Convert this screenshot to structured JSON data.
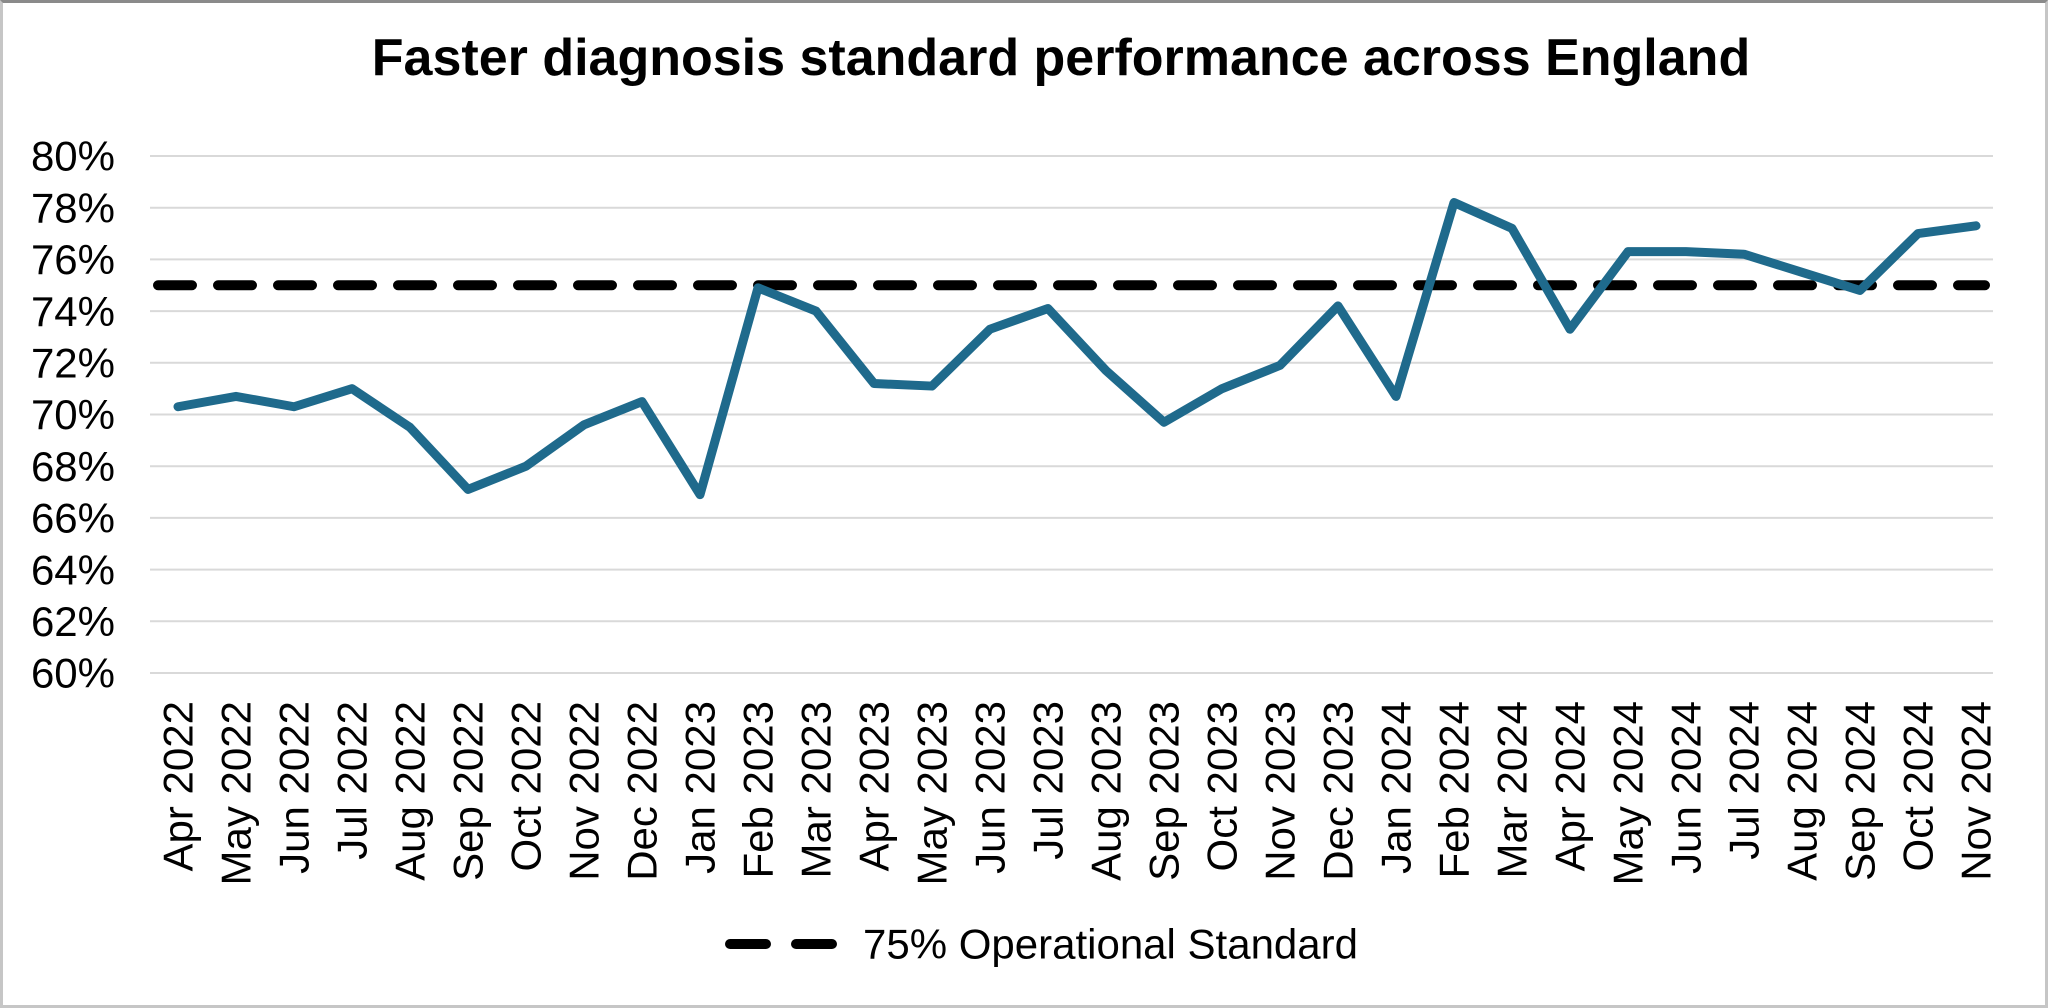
{
  "title": "Faster diagnosis standard performance across England",
  "chart_data": {
    "type": "line",
    "title": "Faster diagnosis standard performance across England",
    "categories": [
      "Apr 2022",
      "May 2022",
      "Jun 2022",
      "Jul 2022",
      "Aug 2022",
      "Sep 2022",
      "Oct 2022",
      "Nov 2022",
      "Dec 2022",
      "Jan 2023",
      "Feb 2023",
      "Mar 2023",
      "Apr 2023",
      "May 2023",
      "Jun 2023",
      "Jul 2023",
      "Aug 2023",
      "Sep 2023",
      "Oct 2023",
      "Nov 2023",
      "Dec 2023",
      "Jan 2024",
      "Feb 2024",
      "Mar 2024",
      "Apr 2024",
      "May 2024",
      "Jun 2024",
      "Jul 2024",
      "Aug 2024",
      "Sep 2024",
      "Oct 2024",
      "Nov 2024"
    ],
    "series": [
      {
        "name": "Faster diagnosis standard performance",
        "values": [
          70.3,
          70.7,
          70.3,
          71.0,
          69.5,
          67.1,
          68.0,
          69.6,
          70.5,
          66.9,
          74.9,
          74.0,
          71.2,
          71.1,
          73.3,
          74.1,
          71.7,
          69.7,
          71.0,
          71.9,
          74.2,
          70.7,
          78.2,
          77.2,
          73.3,
          76.3,
          76.3,
          76.2,
          75.5,
          74.8,
          77.0,
          77.3
        ]
      }
    ],
    "reference_line": {
      "value": 75,
      "label": "75% Operational Standard",
      "style": "dashed"
    },
    "xlabel": "",
    "ylabel": "",
    "ylim": [
      60,
      80
    ],
    "ytick_step": 2,
    "ytick_labels": [
      "80%",
      "78%",
      "76%",
      "74%",
      "72%",
      "70%",
      "68%",
      "66%",
      "64%",
      "62%",
      "60%"
    ],
    "grid": "horizontal",
    "legend_position": "bottom-center",
    "colors": {
      "series": "#1f6a8c",
      "reference": "#000000",
      "gridline": "#d9d9d9",
      "text": "#000000",
      "background": "#ffffff"
    }
  }
}
